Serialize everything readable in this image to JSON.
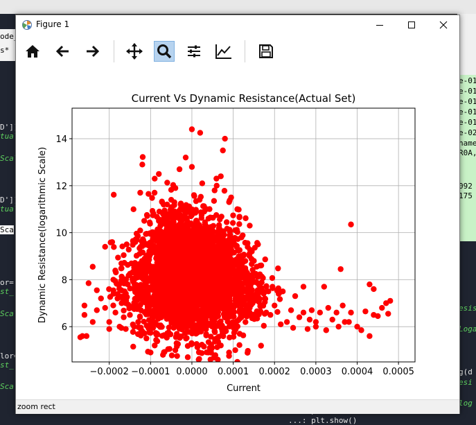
{
  "window": {
    "title": "Figure 1"
  },
  "toolbar": {
    "buttons": [
      "home-icon",
      "back-arrow-icon",
      "forward-arrow-icon",
      "pan-icon",
      "zoom-icon",
      "configure-subplots-icon",
      "edit-axis-icon",
      "save-icon"
    ],
    "active": "zoom-icon"
  },
  "status": {
    "text": "zoom rect"
  },
  "background": {
    "left_code": [
      "ode_",
      "s*",
      "D']]",
      "tual",
      "Scal",
      "D']]",
      "tual",
      "Sca",
      "or=",
      "st_",
      "Scal",
      "lor=",
      "st_",
      "Sca"
    ],
    "right_code": [
      "e-01",
      "e-01",
      "e-01",
      "e-01",
      "e-01",
      "e-02",
      "name",
      "R0A,",
      "092",
      "175",
      "esis",
      "Loga",
      "g(d",
      "esi",
      "log"
    ],
    "bottom_code": "...: plt.show()",
    "bottom_code_prev": "...: plt."
  },
  "chart_data": {
    "type": "scatter",
    "title": "Current Vs Dynamic Resistance(Actual Set)",
    "xlabel": "Current",
    "ylabel": "Dynamic Resistance(logarithmic Scale)",
    "xlim": [
      -0.00029,
      0.00054
    ],
    "ylim": [
      4.5,
      15.3
    ],
    "xticks": [
      -0.0002,
      -0.0001,
      0.0,
      0.0001,
      0.0002,
      0.0003,
      0.0004,
      0.0005
    ],
    "xtick_labels": [
      "−0.0002",
      "−0.0001",
      "0.0000",
      "0.0001",
      "0.0002",
      "0.0003",
      "0.0004",
      "0.0005"
    ],
    "yticks": [
      6,
      8,
      10,
      12,
      14
    ],
    "ytick_labels": [
      "6",
      "8",
      "10",
      "12",
      "14"
    ],
    "grid": true,
    "marker_color": "#ff0000",
    "series": [
      {
        "points": [
          [
            0.000385,
            10.35
          ],
          [
            0.00036,
            8.45
          ],
          [
            0.00043,
            7.8
          ],
          [
            0.00047,
            7.0
          ],
          [
            0.00048,
            7.1
          ],
          [
            0.00046,
            6.8
          ],
          [
            0.00045,
            6.45
          ],
          [
            0.00044,
            6.5
          ],
          [
            0.000475,
            6.55
          ],
          [
            0.00042,
            6.65
          ],
          [
            0.00041,
            5.85
          ],
          [
            0.00043,
            5.6
          ],
          [
            0.0004,
            6.0
          ],
          [
            0.00038,
            6.2
          ],
          [
            0.00037,
            6.2
          ],
          [
            0.00035,
            6.6
          ],
          [
            0.00034,
            6.3
          ],
          [
            0.00033,
            6.8
          ],
          [
            0.00031,
            6.6
          ],
          [
            0.0003,
            6.0
          ],
          [
            0.00029,
            6.7
          ],
          [
            0.00028,
            5.9
          ],
          [
            0.00027,
            6.6
          ],
          [
            0.00026,
            6.4
          ],
          [
            0.00025,
            7.3
          ],
          [
            0.00024,
            6.7
          ],
          [
            0.00023,
            6.2
          ],
          [
            0.00022,
            7.5
          ],
          [
            0.00021,
            7.4
          ],
          [
            0.0002,
            6.9
          ],
          [
            0.00019,
            6.5
          ],
          [
            0.00018,
            6.6
          ],
          [
            0.00032,
            7.7
          ],
          [
            0.00027,
            7.7
          ],
          [
            0.00044,
            7.6
          ],
          [
            0.0003,
            6.2
          ],
          [
            0.000385,
            6.6
          ],
          [
            0.000365,
            6.9
          ],
          [
            0.000355,
            6.0
          ],
          [
            0.000325,
            5.85
          ],
          [
            0.000285,
            6.3
          ],
          [
            0.000245,
            5.95
          ],
          [
            0.000215,
            6.1
          ],
          [
            0.000195,
            7.7
          ],
          [
            -0.00027,
            5.55
          ],
          [
            -0.000265,
            5.6
          ],
          [
            -0.00026,
            6.5
          ],
          [
            -0.000255,
            5.6
          ],
          [
            -0.00025,
            7.85
          ],
          [
            -0.00024,
            6.2
          ],
          [
            -0.00023,
            6.7
          ],
          [
            -0.00022,
            7.2
          ],
          [
            -0.00021,
            6.8
          ],
          [
            -0.0002,
            5.9
          ],
          [
            -0.00019,
            7.4
          ],
          [
            -0.000185,
            6.6
          ],
          [
            -0.000175,
            6.0
          ],
          [
            -0.00017,
            7.0
          ],
          [
            -0.000165,
            6.4
          ],
          [
            -0.00016,
            5.9
          ],
          [
            -0.00024,
            8.55
          ],
          [
            -0.00021,
            9.4
          ],
          [
            -0.00023,
            7.55
          ],
          [
            -0.00018,
            7.2
          ],
          [
            -0.00026,
            6.9
          ],
          [
            -0.00019,
            8.0
          ],
          [
            -0.0002,
            6.2
          ],
          [
            -0.00012,
            12.9
          ],
          [
            -0.000105,
            11.65
          ],
          [
            -9e-05,
            12.3
          ],
          [
            -0.000125,
            11.7
          ],
          [
            -8e-05,
            12.5
          ],
          [
            -4e-05,
            11.9
          ],
          [
            -3e-05,
            12.7
          ],
          [
            0.0,
            14.4
          ],
          [
            2e-05,
            14.25
          ],
          [
            8e-05,
            14.0
          ],
          [
            -1.5e-05,
            13.2
          ],
          [
            0.0,
            12.8
          ],
          [
            2.5e-05,
            12.1
          ],
          [
            5e-06,
            11.6
          ],
          [
            7.5e-05,
            13.5
          ],
          [
            7e-05,
            12.4
          ],
          [
            6e-05,
            12.0
          ],
          [
            9.5e-05,
            11.5
          ],
          [
            0.00011,
            11.0
          ],
          [
            0.00014,
            10.3
          ],
          [
            0.00016,
            9.5
          ],
          [
            5.5e-05,
            11.8
          ],
          [
            9e-05,
            11.3
          ],
          [
            0.000115,
            10.65
          ],
          [
            0.00012,
            9.8
          ],
          [
            0.000145,
            9.2
          ],
          [
            0.00015,
            8.8
          ],
          [
            0.000165,
            8.6
          ],
          [
            0.00018,
            7.7
          ],
          [
            0.000185,
            7.5
          ],
          [
            0.00017,
            6.9
          ],
          [
            9e-05,
            4.9
          ],
          [
            0.000105,
            5.0
          ],
          [
            0.00011,
            4.5
          ],
          [
            6e-05,
            5.5
          ],
          [
            7e-05,
            5.2
          ],
          [
            4.5e-05,
            4.6
          ],
          [
            1e-05,
            5.7
          ],
          [
            -1e-05,
            4.7
          ],
          [
            -4e-05,
            5.0
          ],
          [
            -7e-05,
            4.8
          ],
          [
            -9e-05,
            5.2
          ],
          [
            -0.0001,
            4.9
          ],
          [
            -0.00011,
            5.5
          ],
          [
            -0.00012,
            5.8
          ],
          [
            -0.00013,
            6.2
          ],
          [
            -0.00014,
            6.0
          ],
          [
            -0.00015,
            6.5
          ],
          [
            -0.00016,
            7.0
          ],
          [
            -0.000155,
            7.8
          ],
          [
            -0.00014,
            8.3
          ],
          [
            -0.00013,
            8.6
          ],
          [
            -0.00011,
            9.0
          ],
          [
            -0.0001,
            9.4
          ],
          [
            -9e-05,
            9.8
          ],
          [
            -8e-05,
            10.5
          ],
          [
            -7e-05,
            10.8
          ],
          [
            -6e-05,
            11.2
          ],
          [
            -5e-05,
            11.4
          ],
          [
            -2e-05,
            11.0
          ],
          [
            3e-05,
            10.9
          ],
          [
            4e-05,
            10.6
          ],
          [
            0.00013,
            7.2
          ],
          [
            0.00014,
            6.8
          ],
          [
            0.00012,
            6.4
          ],
          [
            0.0001,
            6.0
          ],
          [
            8e-05,
            5.9
          ],
          [
            0.00015,
            7.9
          ],
          [
            0.00016,
            7.3
          ],
          [
            0.00013,
            8.4
          ],
          [
            0.00012,
            7.6
          ]
        ],
        "dense_regions": [
          {
            "cx": -4e-05,
            "cy": 8.2,
            "sx": 4.5e-05,
            "sy": 1.2,
            "n": 900
          },
          {
            "cx": 4e-05,
            "cy": 8.0,
            "sx": 4.5e-05,
            "sy": 1.3,
            "n": 900
          },
          {
            "cx": -2e-05,
            "cy": 9.3,
            "sx": 5e-05,
            "sy": 1.1,
            "n": 400
          },
          {
            "cx": -0.00011,
            "cy": 7.7,
            "sx": 4e-05,
            "sy": 0.9,
            "n": 250
          },
          {
            "cx": 0.00011,
            "cy": 7.7,
            "sx": 4e-05,
            "sy": 0.9,
            "n": 250
          },
          {
            "cx": 0.0,
            "cy": 6.8,
            "sx": 5e-05,
            "sy": 0.8,
            "n": 250
          }
        ]
      }
    ]
  }
}
